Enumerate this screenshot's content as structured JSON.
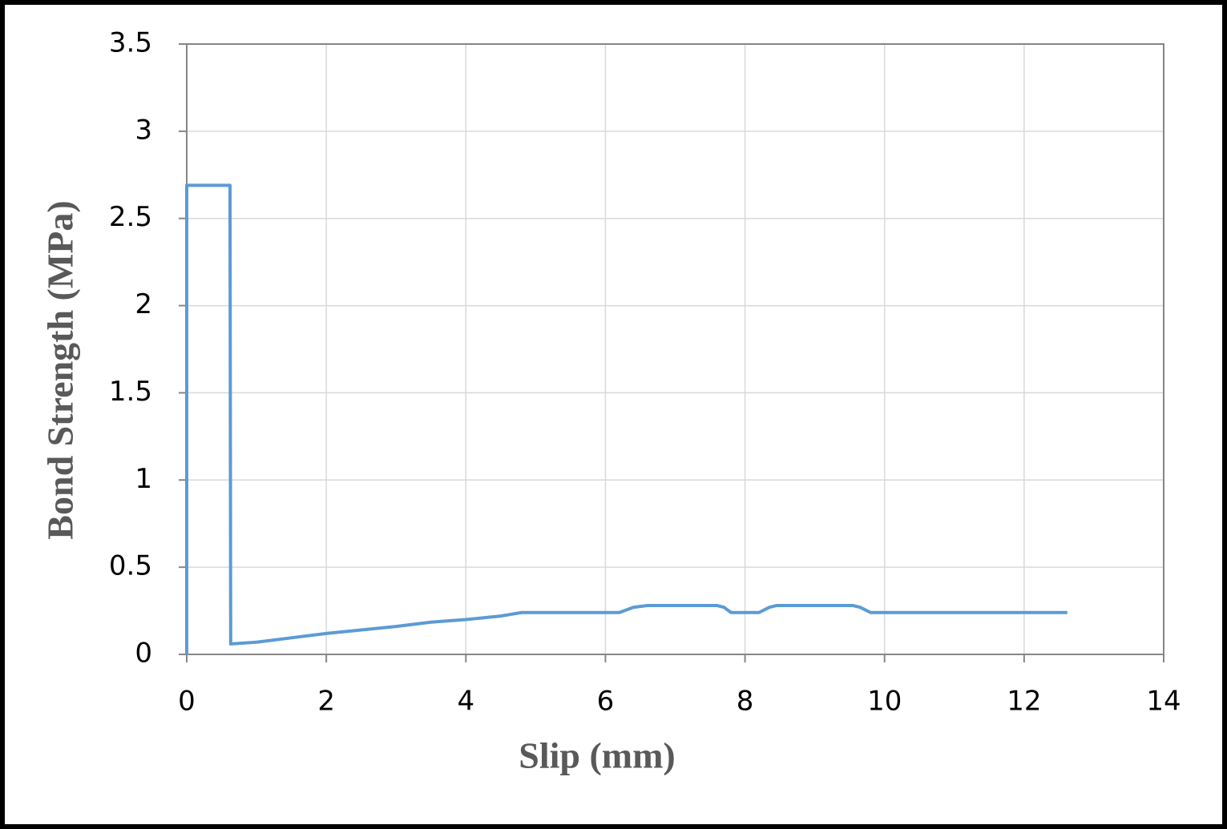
{
  "chart_data": {
    "type": "line",
    "x_label": "Slip (mm)",
    "y_label": "Bond Strength (MPa)",
    "x": [
      0,
      0,
      0.62,
      0.63,
      1,
      1.5,
      2,
      2.5,
      3,
      3.5,
      4,
      4.5,
      4.8,
      5,
      6,
      6.2,
      6.4,
      6.6,
      7,
      7.6,
      7.7,
      7.8,
      8.2,
      8.35,
      8.45,
      9,
      9.55,
      9.65,
      9.8,
      10,
      11,
      12,
      12.62
    ],
    "series": [
      {
        "color": "#5b9bd5",
        "values": [
          0,
          2.69,
          2.69,
          0.06,
          0.07,
          0.095,
          0.12,
          0.14,
          0.16,
          0.185,
          0.2,
          0.22,
          0.24,
          0.24,
          0.24,
          0.24,
          0.27,
          0.28,
          0.28,
          0.28,
          0.27,
          0.24,
          0.24,
          0.27,
          0.28,
          0.28,
          0.28,
          0.27,
          0.24,
          0.24,
          0.24,
          0.24,
          0.24
        ]
      }
    ],
    "xlim": [
      0,
      14
    ],
    "xticks": [
      0,
      2,
      4,
      6,
      8,
      10,
      12,
      14
    ],
    "ylim": [
      0,
      3.5
    ],
    "yticks": [
      0,
      0.5,
      1,
      1.5,
      2,
      2.5,
      3,
      3.5
    ],
    "grid": true
  }
}
